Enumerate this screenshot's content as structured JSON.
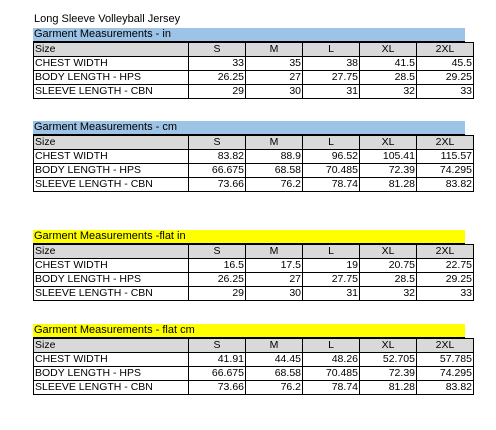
{
  "document": {
    "title": "Long Sleeve Volleyball Jersey"
  },
  "sections": [
    {
      "title": "Garment Measurements - in",
      "header": [
        "Size",
        "S",
        "M",
        "L",
        "XL",
        "2XL"
      ],
      "rows": [
        [
          "CHEST WIDTH",
          "33",
          "35",
          "38",
          "41.5",
          "45.5"
        ],
        [
          "BODY LENGTH - HPS",
          "26.25",
          "27",
          "27.75",
          "28.5",
          "29.25"
        ],
        [
          "SLEEVE LENGTH - CBN",
          "29",
          "30",
          "31",
          "32",
          "33"
        ]
      ]
    },
    {
      "title": "Garment Measurements - cm",
      "header": [
        "Size",
        "S",
        "M",
        "L",
        "XL",
        "2XL"
      ],
      "rows": [
        [
          "CHEST WIDTH",
          "83.82",
          "88.9",
          "96.52",
          "105.41",
          "115.57"
        ],
        [
          "BODY LENGTH - HPS",
          "66.675",
          "68.58",
          "70.485",
          "72.39",
          "74.295"
        ],
        [
          "SLEEVE LENGTH - CBN",
          "73.66",
          "76.2",
          "78.74",
          "81.28",
          "83.82"
        ]
      ]
    },
    {
      "title": "Garment Measurements -flat in",
      "header": [
        "Size",
        "S",
        "M",
        "L",
        "XL",
        "2XL"
      ],
      "rows": [
        [
          "CHEST WIDTH",
          "16.5",
          "17.5",
          "19",
          "20.75",
          "22.75"
        ],
        [
          "BODY LENGTH - HPS",
          "26.25",
          "27",
          "27.75",
          "28.5",
          "29.25"
        ],
        [
          "SLEEVE LENGTH - CBN",
          "29",
          "30",
          "31",
          "32",
          "33"
        ]
      ]
    },
    {
      "title": "Garment Measurements - flat cm",
      "header": [
        "Size",
        "S",
        "M",
        "L",
        "XL",
        "2XL"
      ],
      "rows": [
        [
          "CHEST WIDTH",
          "41.91",
          "44.45",
          "48.26",
          "52.705",
          "57.785"
        ],
        [
          "BODY LENGTH - HPS",
          "66.675",
          "68.58",
          "70.485",
          "72.39",
          "74.295"
        ],
        [
          "SLEEVE LENGTH - CBN",
          "73.66",
          "76.2",
          "78.74",
          "81.28",
          "83.82"
        ]
      ]
    }
  ],
  "colors": {
    "band_blue": "#9dc3e6",
    "band_yellow": "#ffff00",
    "header_gray": "#d9d9d9"
  }
}
